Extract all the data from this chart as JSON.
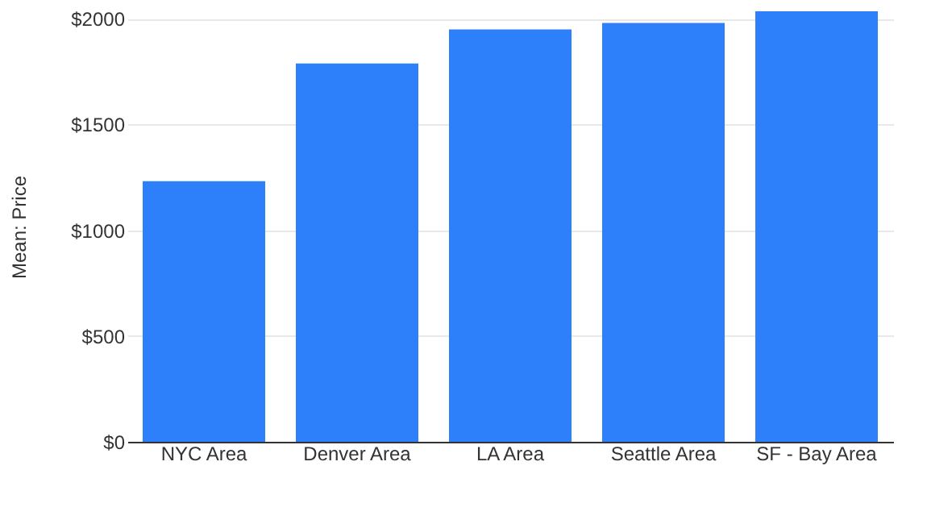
{
  "chart_data": {
    "type": "bar",
    "ylabel": "Mean: Price",
    "categories": [
      "NYC Area",
      "Denver Area",
      "LA Area",
      "Seattle Area",
      "SF - Bay Area"
    ],
    "values": [
      1232,
      1788,
      1949,
      1980,
      2035
    ],
    "color": "#2e7ffa",
    "ylim": [
      0,
      2035
    ],
    "yticks": [
      {
        "value": 0,
        "label": "$0"
      },
      {
        "value": 500,
        "label": "$500"
      },
      {
        "value": 1000,
        "label": "$1000"
      },
      {
        "value": 1500,
        "label": "$1500"
      },
      {
        "value": 2000,
        "label": "$2000"
      }
    ],
    "grid": "y"
  }
}
